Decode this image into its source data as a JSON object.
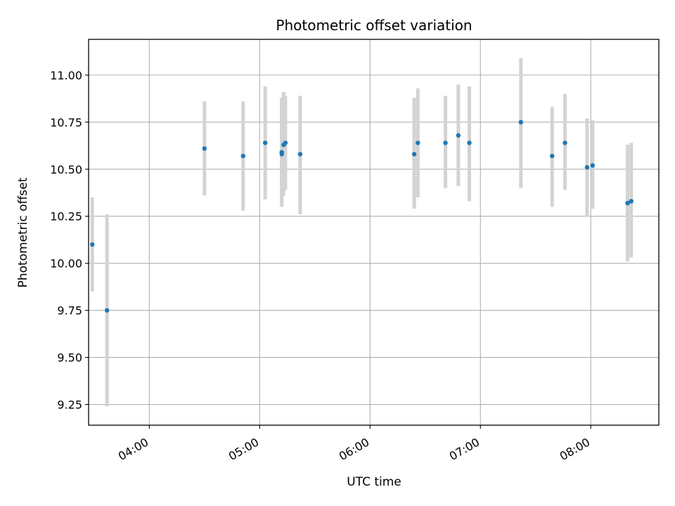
{
  "chart_data": {
    "type": "scatter",
    "title": "Photometric offset variation",
    "xlabel": "UTC time",
    "ylabel": "Photometric offset",
    "x_axis": "time",
    "xlim": [
      "03:27",
      "08:37"
    ],
    "ylim": [
      9.14,
      11.19
    ],
    "x_ticks": [
      "04:00",
      "05:00",
      "06:00",
      "07:00",
      "08:00"
    ],
    "y_ticks": [
      "9.25",
      "9.50",
      "9.75",
      "10.00",
      "10.25",
      "10.50",
      "10.75",
      "11.00"
    ],
    "grid": true,
    "colors": {
      "point": "#1f77b4",
      "errorbar": "#d3d3d3",
      "grid": "#b0b0b0"
    },
    "points": [
      {
        "time": "03:29",
        "y": 10.1,
        "ymin": 9.85,
        "ymax": 10.35
      },
      {
        "time": "03:37",
        "y": 9.75,
        "ymin": 9.24,
        "ymax": 10.26
      },
      {
        "time": "04:30",
        "y": 10.61,
        "ymin": 10.36,
        "ymax": 10.86
      },
      {
        "time": "04:51",
        "y": 10.57,
        "ymin": 10.28,
        "ymax": 10.86
      },
      {
        "time": "05:03",
        "y": 10.64,
        "ymin": 10.34,
        "ymax": 10.94
      },
      {
        "time": "05:12",
        "y": 10.59,
        "ymin": 10.3,
        "ymax": 10.88
      },
      {
        "time": "05:12",
        "y": 10.58,
        "ymin": 10.32,
        "ymax": 10.84
      },
      {
        "time": "05:13",
        "y": 10.63,
        "ymin": 10.36,
        "ymax": 10.91
      },
      {
        "time": "05:14",
        "y": 10.64,
        "ymin": 10.39,
        "ymax": 10.89
      },
      {
        "time": "05:22",
        "y": 10.58,
        "ymin": 10.26,
        "ymax": 10.89
      },
      {
        "time": "06:24",
        "y": 10.58,
        "ymin": 10.29,
        "ymax": 10.88
      },
      {
        "time": "06:26",
        "y": 10.64,
        "ymin": 10.35,
        "ymax": 10.93
      },
      {
        "time": "06:41",
        "y": 10.64,
        "ymin": 10.4,
        "ymax": 10.89
      },
      {
        "time": "06:48",
        "y": 10.68,
        "ymin": 10.41,
        "ymax": 10.95
      },
      {
        "time": "06:54",
        "y": 10.64,
        "ymin": 10.33,
        "ymax": 10.94
      },
      {
        "time": "07:22",
        "y": 10.75,
        "ymin": 10.4,
        "ymax": 11.09
      },
      {
        "time": "07:39",
        "y": 10.57,
        "ymin": 10.3,
        "ymax": 10.83
      },
      {
        "time": "07:46",
        "y": 10.64,
        "ymin": 10.39,
        "ymax": 10.9
      },
      {
        "time": "07:58",
        "y": 10.51,
        "ymin": 10.25,
        "ymax": 10.77
      },
      {
        "time": "08:01",
        "y": 10.52,
        "ymin": 10.29,
        "ymax": 10.76
      },
      {
        "time": "08:20",
        "y": 10.32,
        "ymin": 10.01,
        "ymax": 10.63
      },
      {
        "time": "08:22",
        "y": 10.33,
        "ymin": 10.03,
        "ymax": 10.64
      }
    ]
  }
}
